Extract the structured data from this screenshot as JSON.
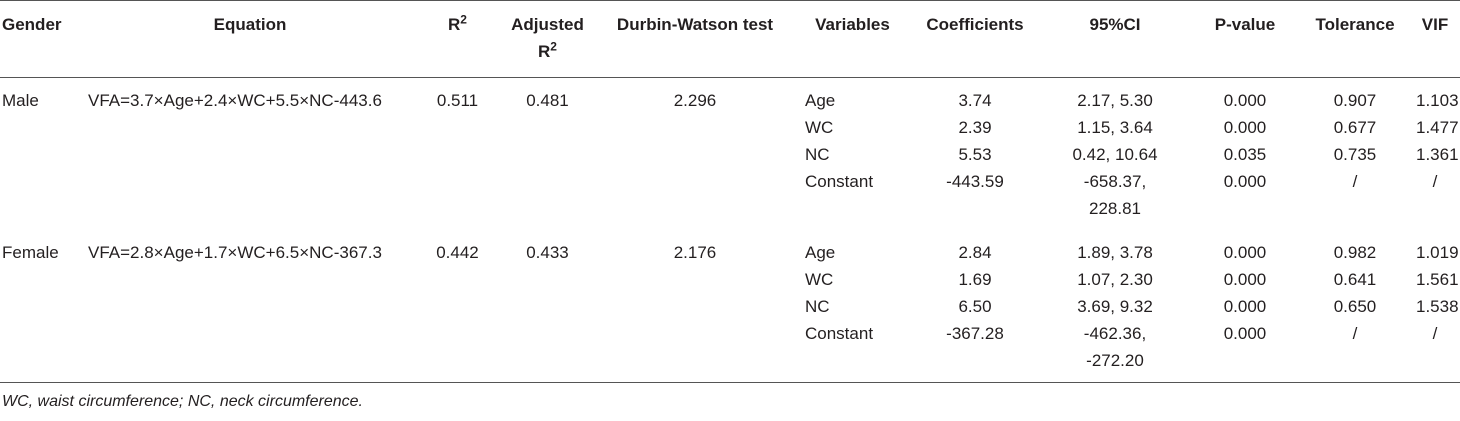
{
  "table": {
    "headers": [
      {
        "text": "Gender"
      },
      {
        "text": "Equation"
      },
      {
        "text": "R",
        "sup": "2"
      },
      {
        "text": "Adjusted R",
        "sup": "2"
      },
      {
        "text": "Durbin-Watson test"
      },
      {
        "text": "Variables"
      },
      {
        "text": "Coefficients"
      },
      {
        "text": "95%CI"
      },
      {
        "text": "P-value"
      },
      {
        "text": "Tolerance"
      },
      {
        "text": "VIF"
      }
    ],
    "groups": [
      {
        "gender": "Male",
        "equation": "VFA=3.7×Age+2.4×WC+5.5×NC-443.6",
        "r2": "0.511",
        "adjusted_r2": "0.481",
        "durbin_watson": "2.296",
        "rows": [
          [
            "Age",
            "3.74",
            "2.17, 5.30",
            "0.000",
            "0.907",
            "1.103"
          ],
          [
            "WC",
            "2.39",
            "1.15, 3.64",
            "0.000",
            "0.677",
            "1.477"
          ],
          [
            "NC",
            "5.53",
            "0.42, 10.64",
            "0.035",
            "0.735",
            "1.361"
          ],
          [
            "Constant",
            "-443.59",
            "-658.37, 228.81",
            "0.000",
            "/",
            "/"
          ]
        ]
      },
      {
        "gender": "Female",
        "equation": "VFA=2.8×Age+1.7×WC+6.5×NC-367.3",
        "r2": "0.442",
        "adjusted_r2": "0.433",
        "durbin_watson": "2.176",
        "rows": [
          [
            "Age",
            "2.84",
            "1.89, 3.78",
            "0.000",
            "0.982",
            "1.019"
          ],
          [
            "WC",
            "1.69",
            "1.07, 2.30",
            "0.000",
            "0.641",
            "1.561"
          ],
          [
            "NC",
            "6.50",
            "3.69, 9.32",
            "0.000",
            "0.650",
            "1.538"
          ],
          [
            "Constant",
            "-367.28",
            "-462.36, -272.20",
            "0.000",
            "/",
            "/"
          ]
        ]
      }
    ],
    "footnote": "WC, waist circumference; NC, neck circumference."
  }
}
